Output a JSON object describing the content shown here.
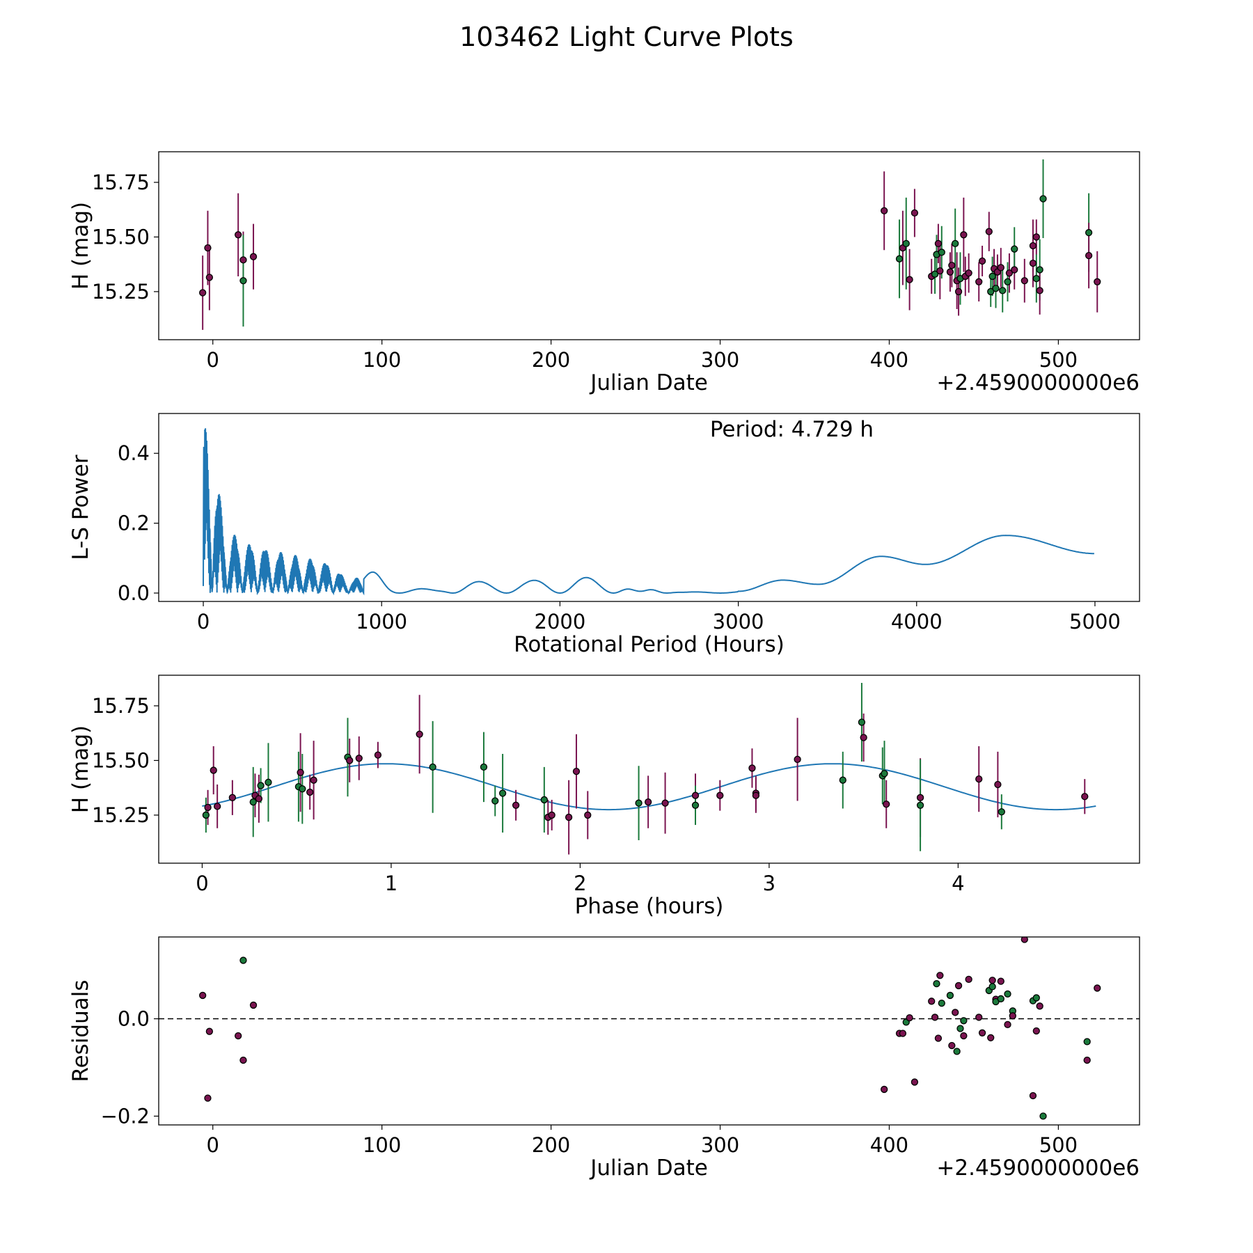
{
  "title": "103462 Light Curve Plots",
  "colors": {
    "magenta": "#7a1450",
    "green": "#1b7a3c",
    "line": "#1f77b4"
  },
  "chart_data": [
    {
      "type": "scatter",
      "xlabel": "Julian Date",
      "ylabel": "H (mag)",
      "offset_label": "+2.4590000000e6",
      "xlim": [
        -32,
        548
      ],
      "ylim": [
        15.03,
        15.89
      ],
      "xticks": [
        0,
        100,
        200,
        300,
        400,
        500
      ],
      "xtick_labels": [
        "0",
        "100",
        "200",
        "300",
        "400",
        "500"
      ],
      "yticks": [
        15.25,
        15.5,
        15.75
      ],
      "ytick_labels": [
        "15.25",
        "15.50",
        "15.75"
      ],
      "points": [
        {
          "x": -6,
          "y": 15.245,
          "err": 0.17,
          "c": "m"
        },
        {
          "x": -3,
          "y": 15.45,
          "err": 0.17,
          "c": "m"
        },
        {
          "x": -2,
          "y": 15.315,
          "err": 0.15,
          "c": "m"
        },
        {
          "x": 15,
          "y": 15.51,
          "err": 0.19,
          "c": "m"
        },
        {
          "x": 18,
          "y": 15.395,
          "err": 0.13,
          "c": "m"
        },
        {
          "x": 18,
          "y": 15.3,
          "err": 0.21,
          "c": "g"
        },
        {
          "x": 24,
          "y": 15.41,
          "err": 0.15,
          "c": "m"
        },
        {
          "x": 397,
          "y": 15.62,
          "err": 0.18,
          "c": "m"
        },
        {
          "x": 406,
          "y": 15.4,
          "err": 0.18,
          "c": "g"
        },
        {
          "x": 408,
          "y": 15.45,
          "err": 0.17,
          "c": "m"
        },
        {
          "x": 410,
          "y": 15.47,
          "err": 0.21,
          "c": "g"
        },
        {
          "x": 412,
          "y": 15.305,
          "err": 0.14,
          "c": "m"
        },
        {
          "x": 415,
          "y": 15.61,
          "err": 0.11,
          "c": "m"
        },
        {
          "x": 425,
          "y": 15.32,
          "err": 0.08,
          "c": "m"
        },
        {
          "x": 427,
          "y": 15.33,
          "err": 0.09,
          "c": "g"
        },
        {
          "x": 428,
          "y": 15.42,
          "err": 0.09,
          "c": "g"
        },
        {
          "x": 429,
          "y": 15.47,
          "err": 0.09,
          "c": "m"
        },
        {
          "x": 430,
          "y": 15.345,
          "err": 0.13,
          "c": "m"
        },
        {
          "x": 431,
          "y": 15.43,
          "err": 0.12,
          "c": "g"
        },
        {
          "x": 436,
          "y": 15.34,
          "err": 0.09,
          "c": "m"
        },
        {
          "x": 437,
          "y": 15.37,
          "err": 0.1,
          "c": "m"
        },
        {
          "x": 439,
          "y": 15.47,
          "err": 0.16,
          "c": "g"
        },
        {
          "x": 440,
          "y": 15.3,
          "err": 0.13,
          "c": "m"
        },
        {
          "x": 441,
          "y": 15.25,
          "err": 0.11,
          "c": "m"
        },
        {
          "x": 442,
          "y": 15.31,
          "err": 0.12,
          "c": "g"
        },
        {
          "x": 444,
          "y": 15.51,
          "err": 0.17,
          "c": "m"
        },
        {
          "x": 445,
          "y": 15.32,
          "err": 0.09,
          "c": "m"
        },
        {
          "x": 447,
          "y": 15.335,
          "err": 0.09,
          "c": "m"
        },
        {
          "x": 453,
          "y": 15.295,
          "err": 0.09,
          "c": "m"
        },
        {
          "x": 455,
          "y": 15.39,
          "err": 0.07,
          "c": "m"
        },
        {
          "x": 459,
          "y": 15.525,
          "err": 0.09,
          "c": "m"
        },
        {
          "x": 460,
          "y": 15.25,
          "err": 0.07,
          "c": "g"
        },
        {
          "x": 461,
          "y": 15.32,
          "err": 0.09,
          "c": "g"
        },
        {
          "x": 462,
          "y": 15.355,
          "err": 0.09,
          "c": "m"
        },
        {
          "x": 463,
          "y": 15.265,
          "err": 0.09,
          "c": "g"
        },
        {
          "x": 464,
          "y": 15.34,
          "err": 0.08,
          "c": "m"
        },
        {
          "x": 466,
          "y": 15.36,
          "err": 0.09,
          "c": "m"
        },
        {
          "x": 467,
          "y": 15.255,
          "err": 0.1,
          "c": "g"
        },
        {
          "x": 470,
          "y": 15.295,
          "err": 0.09,
          "c": "g"
        },
        {
          "x": 471,
          "y": 15.335,
          "err": 0.09,
          "c": "m"
        },
        {
          "x": 474,
          "y": 15.35,
          "err": 0.09,
          "c": "m"
        },
        {
          "x": 474,
          "y": 15.445,
          "err": 0.1,
          "c": "g"
        },
        {
          "x": 480,
          "y": 15.3,
          "err": 0.1,
          "c": "m"
        },
        {
          "x": 485,
          "y": 15.38,
          "err": 0.11,
          "c": "m"
        },
        {
          "x": 485,
          "y": 15.46,
          "err": 0.12,
          "c": "m"
        },
        {
          "x": 487,
          "y": 15.31,
          "err": 0.11,
          "c": "g"
        },
        {
          "x": 487,
          "y": 15.5,
          "err": 0.08,
          "c": "m"
        },
        {
          "x": 489,
          "y": 15.35,
          "err": 0.14,
          "c": "g"
        },
        {
          "x": 489,
          "y": 15.255,
          "err": 0.11,
          "c": "m"
        },
        {
          "x": 491,
          "y": 15.675,
          "err": 0.18,
          "c": "g"
        },
        {
          "x": 518,
          "y": 15.52,
          "err": 0.18,
          "c": "g"
        },
        {
          "x": 518,
          "y": 15.415,
          "err": 0.15,
          "c": "m"
        },
        {
          "x": 523,
          "y": 15.295,
          "err": 0.14,
          "c": "m"
        }
      ]
    },
    {
      "type": "line",
      "xlabel": "Rotational Period (Hours)",
      "ylabel": "L-S Power",
      "annotation": "Period: 4.729 h",
      "xlim": [
        -250,
        5250
      ],
      "ylim": [
        -0.024,
        0.514
      ],
      "xticks": [
        0,
        1000,
        2000,
        3000,
        4000,
        5000
      ],
      "xtick_labels": [
        "0",
        "1000",
        "2000",
        "3000",
        "4000",
        "5000"
      ],
      "yticks": [
        0.0,
        0.2,
        0.4
      ],
      "ytick_labels": [
        "0.0",
        "0.2",
        "0.4"
      ],
      "anchors": [
        [
          1,
          0.49
        ],
        [
          4.7,
          0.49
        ],
        [
          150,
          0.17
        ],
        [
          300,
          0.14
        ],
        [
          420,
          0.12
        ],
        [
          600,
          0.1
        ],
        [
          700,
          0.09
        ],
        [
          820,
          0.04
        ],
        [
          950,
          0.06
        ],
        [
          1100,
          0.02
        ],
        [
          1300,
          0.01
        ],
        [
          1450,
          0.035
        ],
        [
          1600,
          0.032
        ],
        [
          1800,
          0.035
        ],
        [
          1950,
          0.04
        ],
        [
          2100,
          0.045
        ],
        [
          2300,
          0.04
        ],
        [
          2450,
          0.005
        ],
        [
          2550,
          0.02
        ],
        [
          2700,
          0.003
        ],
        [
          3000,
          0.005
        ],
        [
          3250,
          0.037
        ],
        [
          3450,
          0.025
        ],
        [
          3800,
          0.105
        ],
        [
          4050,
          0.082
        ],
        [
          4500,
          0.165
        ],
        [
          5000,
          0.113
        ]
      ]
    },
    {
      "type": "scatter",
      "xlabel": "Phase (hours)",
      "ylabel": "H (mag)",
      "xlim": [
        -0.23,
        4.96
      ],
      "ylim": [
        15.03,
        15.89
      ],
      "xticks": [
        0,
        1,
        2,
        3,
        4
      ],
      "xtick_labels": [
        "0",
        "1",
        "2",
        "3",
        "4"
      ],
      "yticks": [
        15.25,
        15.5,
        15.75
      ],
      "ytick_labels": [
        "15.25",
        "15.50",
        "15.75"
      ],
      "model": {
        "mean": 15.38,
        "amplitude": 0.105,
        "peak_phase": 0.97,
        "cycle_hours": 2.3645,
        "x_range": [
          0,
          4.729
        ]
      },
      "points": [
        {
          "x": 0.03,
          "y": 15.285,
          "err": 0.08,
          "c": "m"
        },
        {
          "x": 0.02,
          "y": 15.25,
          "err": 0.08,
          "c": "g"
        },
        {
          "x": 0.06,
          "y": 15.455,
          "err": 0.11,
          "c": "m"
        },
        {
          "x": 0.08,
          "y": 15.29,
          "err": 0.1,
          "c": "m"
        },
        {
          "x": 0.16,
          "y": 15.33,
          "err": 0.08,
          "c": "m"
        },
        {
          "x": 0.27,
          "y": 15.31,
          "err": 0.16,
          "c": "g"
        },
        {
          "x": 0.28,
          "y": 15.34,
          "err": 0.1,
          "c": "m"
        },
        {
          "x": 0.3,
          "y": 15.325,
          "err": 0.11,
          "c": "m"
        },
        {
          "x": 0.31,
          "y": 15.385,
          "err": 0.08,
          "c": "g"
        },
        {
          "x": 0.35,
          "y": 15.4,
          "err": 0.18,
          "c": "g"
        },
        {
          "x": 0.51,
          "y": 15.38,
          "err": 0.16,
          "c": "g"
        },
        {
          "x": 0.52,
          "y": 15.445,
          "err": 0.18,
          "c": "m"
        },
        {
          "x": 0.53,
          "y": 15.37,
          "err": 0.16,
          "c": "g"
        },
        {
          "x": 0.57,
          "y": 15.355,
          "err": 0.08,
          "c": "m"
        },
        {
          "x": 0.59,
          "y": 15.41,
          "err": 0.18,
          "c": "m"
        },
        {
          "x": 0.77,
          "y": 15.515,
          "err": 0.18,
          "c": "g"
        },
        {
          "x": 0.78,
          "y": 15.5,
          "err": 0.1,
          "c": "m"
        },
        {
          "x": 0.83,
          "y": 15.51,
          "err": 0.1,
          "c": "m"
        },
        {
          "x": 0.93,
          "y": 15.525,
          "err": 0.06,
          "c": "m"
        },
        {
          "x": 1.15,
          "y": 15.62,
          "err": 0.18,
          "c": "m"
        },
        {
          "x": 1.22,
          "y": 15.47,
          "err": 0.21,
          "c": "g"
        },
        {
          "x": 1.49,
          "y": 15.47,
          "err": 0.16,
          "c": "g"
        },
        {
          "x": 1.55,
          "y": 15.315,
          "err": 0.07,
          "c": "g"
        },
        {
          "x": 1.59,
          "y": 15.35,
          "err": 0.18,
          "c": "g"
        },
        {
          "x": 1.66,
          "y": 15.295,
          "err": 0.07,
          "c": "m"
        },
        {
          "x": 1.81,
          "y": 15.32,
          "err": 0.15,
          "c": "g"
        },
        {
          "x": 1.83,
          "y": 15.24,
          "err": 0.08,
          "c": "m"
        },
        {
          "x": 1.85,
          "y": 15.25,
          "err": 0.07,
          "c": "m"
        },
        {
          "x": 1.94,
          "y": 15.24,
          "err": 0.17,
          "c": "m"
        },
        {
          "x": 1.98,
          "y": 15.45,
          "err": 0.17,
          "c": "m"
        },
        {
          "x": 2.04,
          "y": 15.25,
          "err": 0.11,
          "c": "m"
        },
        {
          "x": 2.31,
          "y": 15.305,
          "err": 0.17,
          "c": "g"
        },
        {
          "x": 2.36,
          "y": 15.31,
          "err": 0.12,
          "c": "m"
        },
        {
          "x": 2.45,
          "y": 15.305,
          "err": 0.14,
          "c": "m"
        },
        {
          "x": 2.61,
          "y": 15.34,
          "err": 0.1,
          "c": "m"
        },
        {
          "x": 2.61,
          "y": 15.295,
          "err": 0.09,
          "c": "g"
        },
        {
          "x": 2.74,
          "y": 15.34,
          "err": 0.07,
          "c": "m"
        },
        {
          "x": 2.91,
          "y": 15.465,
          "err": 0.09,
          "c": "m"
        },
        {
          "x": 2.93,
          "y": 15.35,
          "err": 0.08,
          "c": "m"
        },
        {
          "x": 2.93,
          "y": 15.34,
          "err": 0.08,
          "c": "m"
        },
        {
          "x": 3.15,
          "y": 15.505,
          "err": 0.19,
          "c": "m"
        },
        {
          "x": 3.39,
          "y": 15.41,
          "err": 0.13,
          "c": "g"
        },
        {
          "x": 3.49,
          "y": 15.675,
          "err": 0.18,
          "c": "g"
        },
        {
          "x": 3.5,
          "y": 15.605,
          "err": 0.11,
          "c": "m"
        },
        {
          "x": 3.6,
          "y": 15.43,
          "err": 0.13,
          "c": "g"
        },
        {
          "x": 3.61,
          "y": 15.44,
          "err": 0.15,
          "c": "g"
        },
        {
          "x": 3.62,
          "y": 15.3,
          "err": 0.11,
          "c": "m"
        },
        {
          "x": 3.8,
          "y": 15.33,
          "err": 0.18,
          "c": "m"
        },
        {
          "x": 3.8,
          "y": 15.295,
          "err": 0.21,
          "c": "g"
        },
        {
          "x": 4.11,
          "y": 15.415,
          "err": 0.15,
          "c": "m"
        },
        {
          "x": 4.21,
          "y": 15.39,
          "err": 0.15,
          "c": "m"
        },
        {
          "x": 4.23,
          "y": 15.265,
          "err": 0.08,
          "c": "g"
        },
        {
          "x": 4.67,
          "y": 15.335,
          "err": 0.08,
          "c": "m"
        }
      ]
    },
    {
      "type": "scatter",
      "xlabel": "Julian Date",
      "ylabel": "Residuals",
      "offset_label": "+2.4590000000e6",
      "xlim": [
        -32,
        548
      ],
      "ylim": [
        -0.218,
        0.168
      ],
      "xticks": [
        0,
        100,
        200,
        300,
        400,
        500
      ],
      "xtick_labels": [
        "0",
        "100",
        "200",
        "300",
        "400",
        "500"
      ],
      "yticks": [
        -0.2,
        0.0
      ],
      "ytick_labels": [
        "−0.2",
        "0.0"
      ],
      "zero_line": 0,
      "points": [
        {
          "x": -6,
          "y": 0.048,
          "c": "m"
        },
        {
          "x": -3,
          "y": -0.163,
          "c": "m"
        },
        {
          "x": -2,
          "y": -0.026,
          "c": "m"
        },
        {
          "x": 15,
          "y": -0.035,
          "c": "m"
        },
        {
          "x": 18,
          "y": -0.085,
          "c": "m"
        },
        {
          "x": 18,
          "y": 0.12,
          "c": "g"
        },
        {
          "x": 24,
          "y": 0.028,
          "c": "m"
        },
        {
          "x": 397,
          "y": -0.145,
          "c": "m"
        },
        {
          "x": 406,
          "y": -0.03,
          "c": "m"
        },
        {
          "x": 408,
          "y": -0.03,
          "c": "m"
        },
        {
          "x": 410,
          "y": -0.007,
          "c": "g"
        },
        {
          "x": 412,
          "y": 0.002,
          "c": "m"
        },
        {
          "x": 415,
          "y": -0.13,
          "c": "m"
        },
        {
          "x": 425,
          "y": 0.036,
          "c": "m"
        },
        {
          "x": 427,
          "y": 0.003,
          "c": "m"
        },
        {
          "x": 428,
          "y": 0.072,
          "c": "g"
        },
        {
          "x": 429,
          "y": -0.04,
          "c": "m"
        },
        {
          "x": 430,
          "y": 0.089,
          "c": "m"
        },
        {
          "x": 431,
          "y": 0.032,
          "c": "g"
        },
        {
          "x": 436,
          "y": 0.048,
          "c": "g"
        },
        {
          "x": 437,
          "y": -0.055,
          "c": "m"
        },
        {
          "x": 439,
          "y": 0.013,
          "c": "m"
        },
        {
          "x": 440,
          "y": -0.067,
          "c": "g"
        },
        {
          "x": 441,
          "y": 0.068,
          "c": "m"
        },
        {
          "x": 442,
          "y": -0.02,
          "c": "g"
        },
        {
          "x": 444,
          "y": -0.035,
          "c": "m"
        },
        {
          "x": 444,
          "y": -0.004,
          "c": "g"
        },
        {
          "x": 447,
          "y": 0.081,
          "c": "m"
        },
        {
          "x": 453,
          "y": 0.003,
          "c": "m"
        },
        {
          "x": 455,
          "y": -0.029,
          "c": "m"
        },
        {
          "x": 459,
          "y": 0.058,
          "c": "g"
        },
        {
          "x": 460,
          "y": -0.039,
          "c": "m"
        },
        {
          "x": 461,
          "y": 0.079,
          "c": "m"
        },
        {
          "x": 461,
          "y": 0.066,
          "c": "g"
        },
        {
          "x": 463,
          "y": 0.04,
          "c": "m"
        },
        {
          "x": 463,
          "y": 0.035,
          "c": "g"
        },
        {
          "x": 466,
          "y": 0.077,
          "c": "m"
        },
        {
          "x": 466,
          "y": 0.041,
          "c": "g"
        },
        {
          "x": 470,
          "y": 0.051,
          "c": "g"
        },
        {
          "x": 470,
          "y": -0.012,
          "c": "m"
        },
        {
          "x": 473,
          "y": 0.016,
          "c": "g"
        },
        {
          "x": 473,
          "y": 0.006,
          "c": "m"
        },
        {
          "x": 480,
          "y": 0.163,
          "c": "m"
        },
        {
          "x": 485,
          "y": -0.158,
          "c": "m"
        },
        {
          "x": 485,
          "y": 0.037,
          "c": "g"
        },
        {
          "x": 487,
          "y": 0.043,
          "c": "g"
        },
        {
          "x": 487,
          "y": -0.025,
          "c": "m"
        },
        {
          "x": 489,
          "y": 0.026,
          "c": "m"
        },
        {
          "x": 491,
          "y": -0.2,
          "c": "g"
        },
        {
          "x": 517,
          "y": -0.047,
          "c": "g"
        },
        {
          "x": 517,
          "y": -0.085,
          "c": "m"
        },
        {
          "x": 523,
          "y": 0.063,
          "c": "m"
        }
      ]
    }
  ]
}
